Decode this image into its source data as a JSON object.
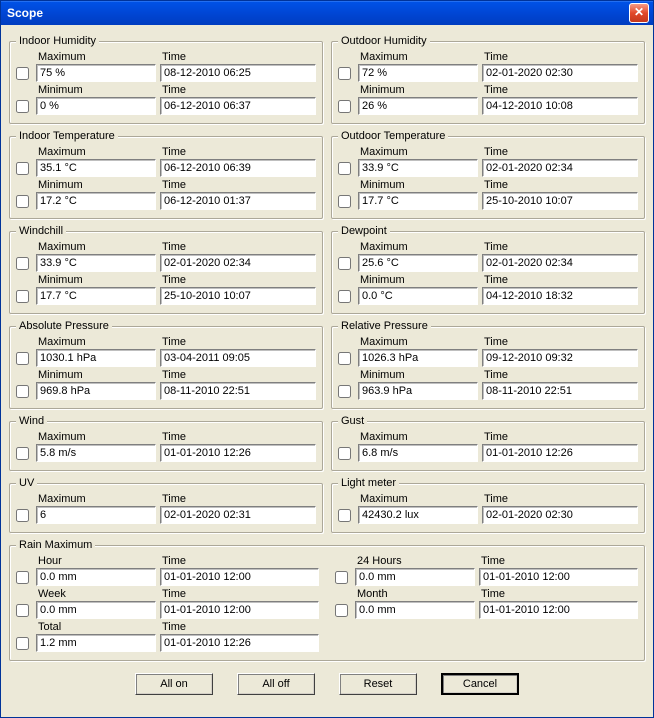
{
  "window": {
    "title": "Scope"
  },
  "sections": {
    "indoor_humidity": {
      "legend": "Indoor Humidity",
      "max_label": "Maximum",
      "max_value": "75 %",
      "max_time_label": "Time",
      "max_time": "08-12-2010 06:25",
      "min_label": "Minimum",
      "min_value": "0 %",
      "min_time_label": "Time",
      "min_time": "06-12-2010 06:37"
    },
    "outdoor_humidity": {
      "legend": "Outdoor Humidity",
      "max_label": "Maximum",
      "max_value": "72 %",
      "max_time_label": "Time",
      "max_time": "02-01-2020 02:30",
      "min_label": "Minimum",
      "min_value": "26 %",
      "min_time_label": "Time",
      "min_time": "04-12-2010 10:08"
    },
    "indoor_temperature": {
      "legend": "Indoor Temperature",
      "max_label": "Maximum",
      "max_value": "35.1 °C",
      "max_time_label": "Time",
      "max_time": "06-12-2010 06:39",
      "min_label": "Minimum",
      "min_value": "17.2 °C",
      "min_time_label": "Time",
      "min_time": "06-12-2010 01:37"
    },
    "outdoor_temperature": {
      "legend": "Outdoor Temperature",
      "max_label": "Maximum",
      "max_value": "33.9 °C",
      "max_time_label": "Time",
      "max_time": "02-01-2020 02:34",
      "min_label": "Minimum",
      "min_value": "17.7 °C",
      "min_time_label": "Time",
      "min_time": "25-10-2010 10:07"
    },
    "windchill": {
      "legend": "Windchill",
      "max_label": "Maximum",
      "max_value": "33.9 °C",
      "max_time_label": "Time",
      "max_time": "02-01-2020 02:34",
      "min_label": "Minimum",
      "min_value": "17.7 °C",
      "min_time_label": "Time",
      "min_time": "25-10-2010 10:07"
    },
    "dewpoint": {
      "legend": "Dewpoint",
      "max_label": "Maximum",
      "max_value": "25.6 °C",
      "max_time_label": "Time",
      "max_time": "02-01-2020 02:34",
      "min_label": "Minimum",
      "min_value": "0.0 °C",
      "min_time_label": "Time",
      "min_time": "04-12-2010 18:32"
    },
    "absolute_pressure": {
      "legend": "Absolute Pressure",
      "max_label": "Maximum",
      "max_value": "1030.1 hPa",
      "max_time_label": "Time",
      "max_time": "03-04-2011 09:05",
      "min_label": "Minimum",
      "min_value": "969.8 hPa",
      "min_time_label": "Time",
      "min_time": "08-11-2010 22:51"
    },
    "relative_pressure": {
      "legend": "Relative Pressure",
      "max_label": "Maximum",
      "max_value": "1026.3 hPa",
      "max_time_label": "Time",
      "max_time": "09-12-2010 09:32",
      "min_label": "Minimum",
      "min_value": "963.9 hPa",
      "min_time_label": "Time",
      "min_time": "08-11-2010 22:51"
    },
    "wind": {
      "legend": "Wind",
      "max_label": "Maximum",
      "max_value": "5.8 m/s",
      "max_time_label": "Time",
      "max_time": "01-01-2010 12:26"
    },
    "gust": {
      "legend": "Gust",
      "max_label": "Maximum",
      "max_value": "6.8 m/s",
      "max_time_label": "Time",
      "max_time": "01-01-2010 12:26"
    },
    "uv": {
      "legend": "UV",
      "max_label": "Maximum",
      "max_value": "6",
      "max_time_label": "Time",
      "max_time": "02-01-2020 02:31"
    },
    "light_meter": {
      "legend": "Light meter",
      "max_label": "Maximum",
      "max_value": "42430.2 lux",
      "max_time_label": "Time",
      "max_time": "02-01-2020 02:30"
    }
  },
  "rain": {
    "legend": "Rain Maximum",
    "hour": {
      "label": "Hour",
      "value": "0.0 mm",
      "time_label": "Time",
      "time": "01-01-2010 12:00"
    },
    "day": {
      "label": "24 Hours",
      "value": "0.0 mm",
      "time_label": "Time",
      "time": "01-01-2010 12:00"
    },
    "week": {
      "label": "Week",
      "value": "0.0 mm",
      "time_label": "Time",
      "time": "01-01-2010 12:00"
    },
    "month": {
      "label": "Month",
      "value": "0.0 mm",
      "time_label": "Time",
      "time": "01-01-2010 12:00"
    },
    "total": {
      "label": "Total",
      "value": "1.2 mm",
      "time_label": "Time",
      "time": "01-01-2010 12:26"
    }
  },
  "buttons": {
    "all_on": "All on",
    "all_off": "All off",
    "reset": "Reset",
    "cancel": "Cancel"
  },
  "style": {
    "titlebar_gradient_top": "#3a81f8",
    "titlebar_gradient_bottom": "#003dc0",
    "body_bg": "#ece9d8",
    "close_btn_bg_top": "#f79b85",
    "close_btn_bg_bottom": "#c4381c",
    "field_border_dark": "#7f7f7f",
    "group_border": "#aca899",
    "font_family": "Tahoma",
    "font_size_pt": 8
  }
}
